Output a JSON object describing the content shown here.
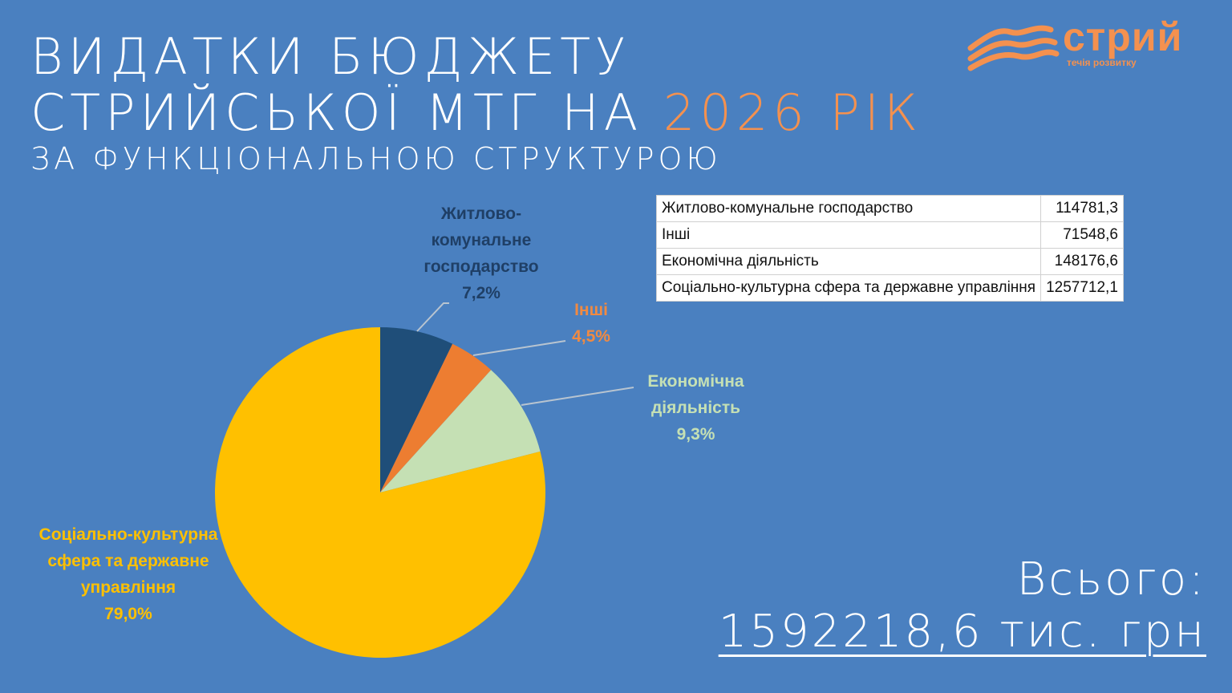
{
  "title_line1": "ВИДАТКИ БЮДЖЕТУ",
  "title_line2": "СТРИЙСЬКОЇ МТГ НА ",
  "title_year": "2026 РІК",
  "subtitle": "ЗА ФУНКЦІОНАЛЬНОЮ СТРУКТУРОЮ",
  "logo": {
    "name": "стрий",
    "tagline": "течія розвитку"
  },
  "total": {
    "label": "Всього:",
    "value": "1592218,6 тис. грн"
  },
  "chart_data": {
    "type": "pie",
    "categories": [
      "Житлово-комунальне господарство",
      "Інші",
      "Економічна діяльність",
      "Соціально-культурна сфера та державне управління"
    ],
    "values": [
      114781.3,
      71548.6,
      148176.6,
      1257712.1
    ],
    "percent_labels": [
      "7,2%",
      "4,5%",
      "9,3%",
      "79,0%"
    ],
    "label_text": [
      "Житлово-комунальне господарство",
      "Інші",
      "Економічна діяльність",
      "Соціально-культурна сфера та державне управління"
    ],
    "colors": [
      "#1f4e79",
      "#ed7d31",
      "#c5e0b4",
      "#ffc000"
    ],
    "label_colors": [
      "#1f3f66",
      "#f08a42",
      "#c5e0b4",
      "#ffc000"
    ],
    "table": [
      [
        "Житлово-комунальне господарство",
        "114781,3"
      ],
      [
        "Інші",
        "71548,6"
      ],
      [
        "Економічна діяльність",
        "148176,6"
      ],
      [
        "Соціально-культурна сфера та державне управління",
        "1257712,1"
      ]
    ]
  }
}
